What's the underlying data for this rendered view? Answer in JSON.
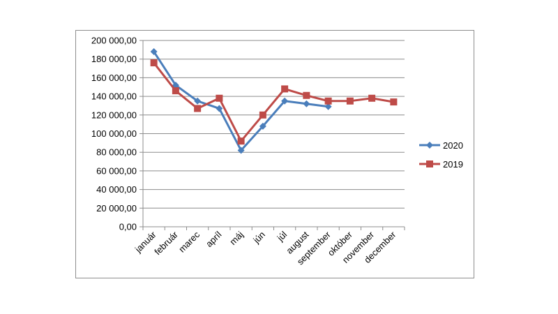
{
  "chart_data": {
    "type": "line",
    "categories": [
      "január",
      "február",
      "marec",
      "apríl",
      "máj",
      "jún",
      "júl",
      "august",
      "september",
      "október",
      "november",
      "december"
    ],
    "ylim": [
      0,
      200000
    ],
    "yticks": [
      0,
      20000,
      40000,
      60000,
      80000,
      100000,
      120000,
      140000,
      160000,
      180000,
      200000
    ],
    "ytick_labels": [
      "0,00",
      "20 000,00",
      "40 000,00",
      "60 000,00",
      "80 000,00",
      "100 000,00",
      "120 000,00",
      "140 000,00",
      "160 000,00",
      "180 000,00",
      "200 000,00"
    ],
    "grid": true,
    "legend_position": "right",
    "series": [
      {
        "name": "2020",
        "color": "#4a7ebb",
        "marker": "diamond",
        "values": [
          188000,
          152000,
          135000,
          127000,
          82000,
          108000,
          135000,
          132000,
          129000,
          null,
          null,
          null
        ]
      },
      {
        "name": "2019",
        "color": "#be4b48",
        "marker": "square",
        "values": [
          176000,
          146000,
          127000,
          138000,
          92000,
          120000,
          148000,
          141000,
          135000,
          135000,
          138000,
          134000
        ]
      }
    ]
  }
}
